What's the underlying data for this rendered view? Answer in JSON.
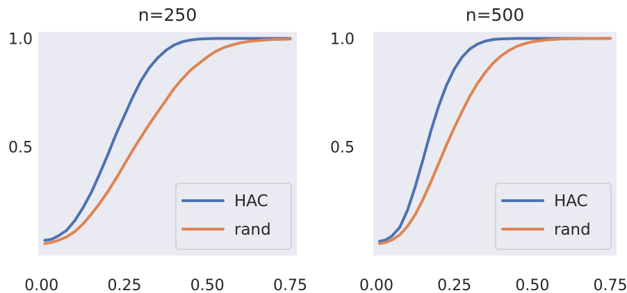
{
  "chart_data": [
    {
      "type": "line",
      "title": "n=250",
      "xlabel": "",
      "ylabel": "",
      "xlim": [
        -0.01,
        0.77
      ],
      "ylim": [
        0.0,
        1.03
      ],
      "xticks": [
        "0.00",
        "0.25",
        "0.50",
        "0.75"
      ],
      "yticks": [
        "0.5",
        "1.0"
      ],
      "grid": false,
      "legend_position": "lower-right",
      "series": [
        {
          "name": "HAC",
          "color": "#4c72b0",
          "x": [
            0.01,
            0.03,
            0.05,
            0.075,
            0.1,
            0.125,
            0.15,
            0.175,
            0.2,
            0.225,
            0.25,
            0.275,
            0.3,
            0.325,
            0.35,
            0.375,
            0.4,
            0.425,
            0.45,
            0.475,
            0.5,
            0.525,
            0.55,
            0.575,
            0.6,
            0.625,
            0.65,
            0.675,
            0.7,
            0.725,
            0.75
          ],
          "y": [
            0.07,
            0.075,
            0.09,
            0.115,
            0.16,
            0.22,
            0.29,
            0.375,
            0.465,
            0.56,
            0.645,
            0.73,
            0.805,
            0.865,
            0.91,
            0.945,
            0.97,
            0.985,
            0.993,
            0.997,
            0.999,
            1.0,
            1.0,
            1.0,
            1.0,
            1.0,
            1.0,
            1.0,
            1.0,
            1.0,
            1.0
          ]
        },
        {
          "name": "rand",
          "color": "#dd8452",
          "x": [
            0.01,
            0.03,
            0.05,
            0.075,
            0.1,
            0.125,
            0.15,
            0.175,
            0.2,
            0.225,
            0.25,
            0.275,
            0.3,
            0.325,
            0.35,
            0.375,
            0.4,
            0.425,
            0.45,
            0.475,
            0.5,
            0.525,
            0.55,
            0.575,
            0.6,
            0.625,
            0.65,
            0.675,
            0.7,
            0.725,
            0.75
          ],
          "y": [
            0.055,
            0.06,
            0.07,
            0.085,
            0.11,
            0.145,
            0.19,
            0.24,
            0.295,
            0.355,
            0.42,
            0.485,
            0.545,
            0.605,
            0.66,
            0.715,
            0.77,
            0.815,
            0.855,
            0.885,
            0.915,
            0.94,
            0.958,
            0.97,
            0.98,
            0.986,
            0.99,
            0.993,
            0.995,
            0.996,
            0.997
          ]
        }
      ]
    },
    {
      "type": "line",
      "title": "n=500",
      "xlabel": "",
      "ylabel": "",
      "xlim": [
        -0.01,
        0.77
      ],
      "ylim": [
        0.0,
        1.03
      ],
      "xticks": [
        "0.00",
        "0.25",
        "0.50",
        "0.75"
      ],
      "yticks": [
        "0.5",
        "1.0"
      ],
      "grid": false,
      "legend_position": "lower-right",
      "series": [
        {
          "name": "HAC",
          "color": "#4c72b0",
          "x": [
            0.01,
            0.03,
            0.05,
            0.075,
            0.1,
            0.125,
            0.15,
            0.175,
            0.2,
            0.225,
            0.25,
            0.275,
            0.3,
            0.325,
            0.35,
            0.375,
            0.4,
            0.425,
            0.45,
            0.475,
            0.5,
            0.55,
            0.6,
            0.65,
            0.7,
            0.75
          ],
          "y": [
            0.065,
            0.072,
            0.09,
            0.13,
            0.21,
            0.32,
            0.445,
            0.575,
            0.69,
            0.785,
            0.86,
            0.915,
            0.952,
            0.975,
            0.988,
            0.995,
            0.998,
            0.999,
            1.0,
            1.0,
            1.0,
            1.0,
            1.0,
            1.0,
            1.0,
            1.0
          ]
        },
        {
          "name": "rand",
          "color": "#dd8452",
          "x": [
            0.01,
            0.03,
            0.05,
            0.075,
            0.1,
            0.125,
            0.15,
            0.175,
            0.2,
            0.225,
            0.25,
            0.275,
            0.3,
            0.325,
            0.35,
            0.375,
            0.4,
            0.425,
            0.45,
            0.475,
            0.5,
            0.55,
            0.6,
            0.65,
            0.7,
            0.75
          ],
          "y": [
            0.055,
            0.06,
            0.072,
            0.095,
            0.135,
            0.19,
            0.26,
            0.34,
            0.425,
            0.51,
            0.59,
            0.665,
            0.735,
            0.795,
            0.845,
            0.888,
            0.92,
            0.945,
            0.963,
            0.976,
            0.985,
            0.994,
            0.998,
            0.999,
            1.0,
            1.0
          ]
        }
      ]
    }
  ]
}
